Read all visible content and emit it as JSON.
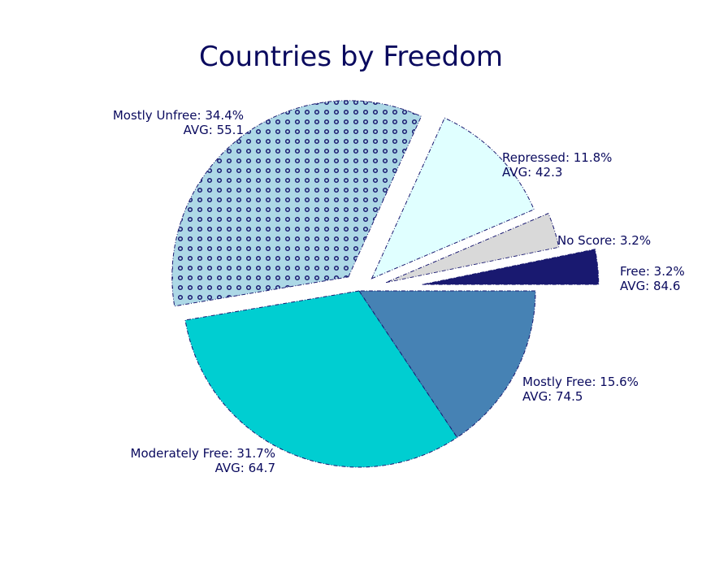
{
  "chart_data": {
    "type": "pie",
    "title": "Countries by Freedom",
    "slices": [
      {
        "name": "Free",
        "percent": 3.2,
        "avg": 84.6,
        "label": "Free: 3.2%",
        "avg_label": "AVG: 84.6",
        "color": "#191970",
        "exploded": true,
        "hatch": false
      },
      {
        "name": "No Score",
        "percent": 3.2,
        "avg": null,
        "label": "No Score: 3.2%",
        "avg_label": "",
        "color": "#d9d9d9",
        "exploded": true,
        "hatch": false
      },
      {
        "name": "Repressed",
        "percent": 11.8,
        "avg": 42.3,
        "label": "Repressed: 11.8%",
        "avg_label": "AVG: 42.3",
        "color": "#e0ffff",
        "exploded": true,
        "hatch": false
      },
      {
        "name": "Mostly Unfree",
        "percent": 34.4,
        "avg": 55.1,
        "label": "Mostly Unfree: 34.4%",
        "avg_label": "AVG: 55.1",
        "color": "#add8e6",
        "exploded": true,
        "hatch": true
      },
      {
        "name": "Moderately Free",
        "percent": 31.7,
        "avg": 64.7,
        "label": "Moderately Free: 31.7%",
        "avg_label": "AVG: 64.7",
        "color": "#00ced1",
        "exploded": false,
        "hatch": false
      },
      {
        "name": "Mostly Free",
        "percent": 15.6,
        "avg": 74.5,
        "label": "Mostly Free: 15.6%",
        "avg_label": "AVG: 74.5",
        "color": "#4682b4",
        "exploded": false,
        "hatch": false
      }
    ],
    "start_angle_deg": 0,
    "direction": "counterclockwise",
    "edge_color": "#191970",
    "text_color": "#0a0a5e"
  }
}
